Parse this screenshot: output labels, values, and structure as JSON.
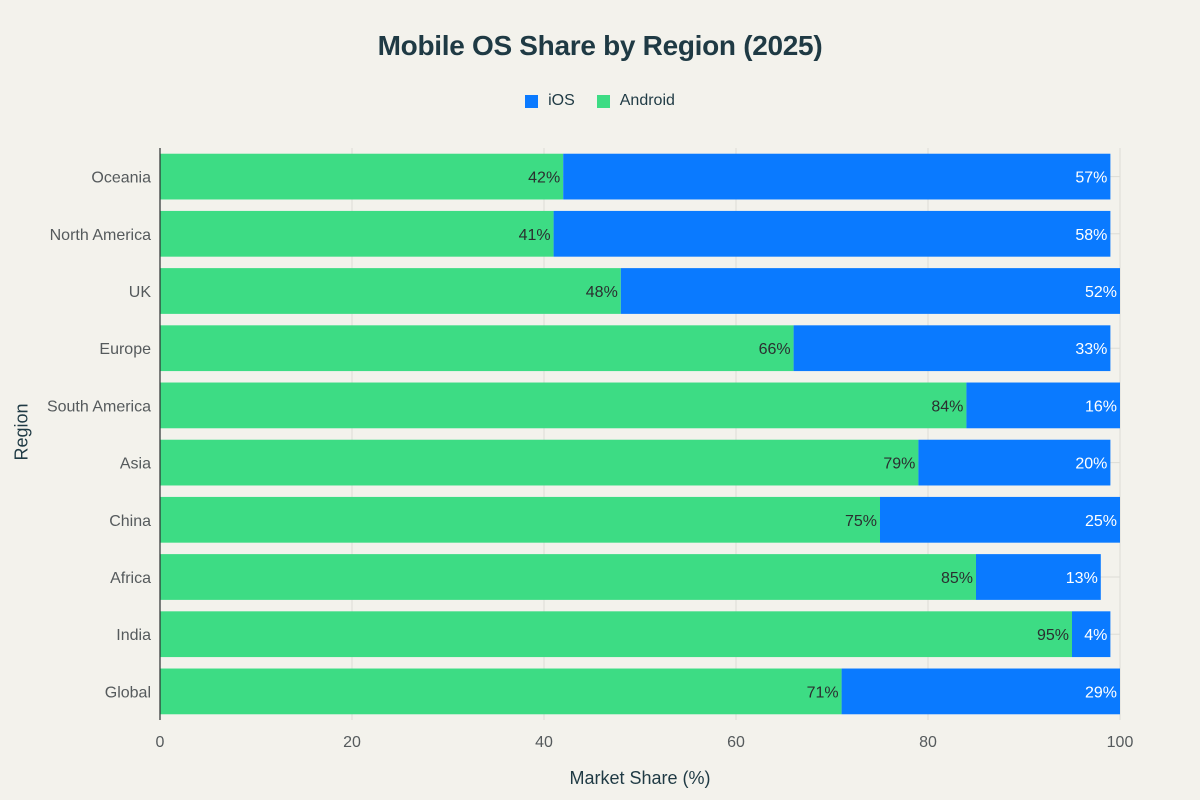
{
  "chart_data": {
    "type": "bar",
    "orientation": "horizontal",
    "stacked": true,
    "title": "Mobile OS Share by Region (2025)",
    "xlabel": "Market Share (%)",
    "ylabel": "Region",
    "xlim": [
      0,
      100
    ],
    "xticks": [
      "0",
      "20",
      "40",
      "60",
      "80",
      "100"
    ],
    "grid": true,
    "legend_position": "top-center",
    "categories": [
      "Oceania",
      "North America",
      "UK",
      "Europe",
      "South America",
      "Asia",
      "China",
      "Africa",
      "India",
      "Global"
    ],
    "series": [
      {
        "name": "Android",
        "color": "#3ddc84",
        "label_color": "#2b2f30",
        "values": [
          42,
          41,
          48,
          66,
          84,
          79,
          75,
          85,
          95,
          71
        ],
        "labels": [
          "42%",
          "41%",
          "48%",
          "66%",
          "84%",
          "79%",
          "75%",
          "85%",
          "95%",
          "71%"
        ]
      },
      {
        "name": "iOS",
        "color": "#0a7aff",
        "label_color": "#ffffff",
        "values": [
          57,
          58,
          52,
          33,
          16,
          20,
          25,
          13,
          4,
          29
        ],
        "labels": [
          "57%",
          "58%",
          "52%",
          "33%",
          "16%",
          "20%",
          "25%",
          "13%",
          "4%",
          "29%"
        ]
      }
    ],
    "legend": [
      {
        "name": "iOS",
        "color": "#0a7aff"
      },
      {
        "name": "Android",
        "color": "#3ddc84"
      }
    ]
  }
}
